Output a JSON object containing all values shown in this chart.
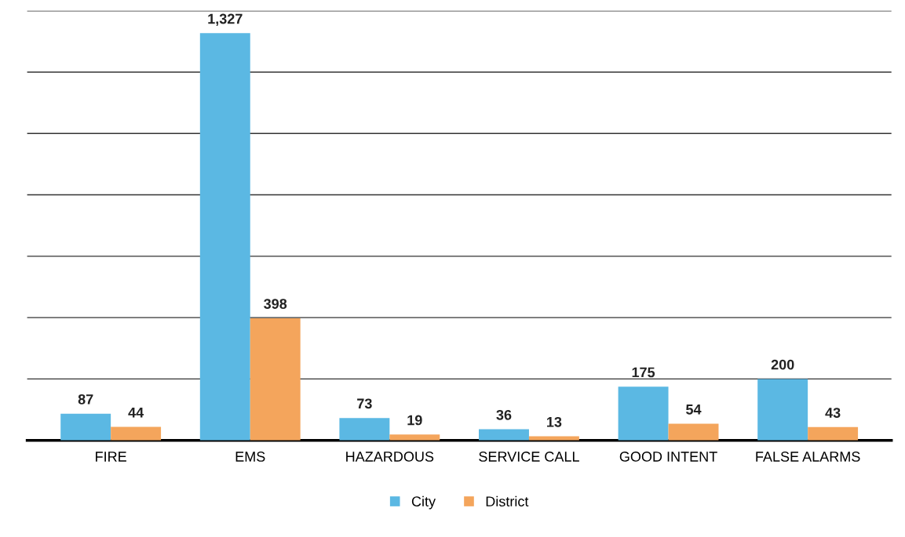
{
  "chart_data": {
    "type": "bar",
    "categories": [
      "FIRE",
      "EMS",
      "HAZARDOUS",
      "SERVICE CALL",
      "GOOD INTENT",
      "FALSE ALARMS"
    ],
    "series": [
      {
        "name": "City",
        "color": "#5bb8e3",
        "values": [
          87,
          1327,
          73,
          36,
          175,
          200
        ],
        "value_labels": [
          "87",
          "1,327",
          "73",
          "36",
          "175",
          "200"
        ]
      },
      {
        "name": "District",
        "color": "#f4a55c",
        "values": [
          44,
          398,
          19,
          13,
          54,
          43
        ],
        "value_labels": [
          "44",
          "398",
          "19",
          "13",
          "54",
          "43"
        ]
      }
    ],
    "ylim": [
      0,
      1400
    ],
    "yticks": [
      {
        "value": 0,
        "label": null
      },
      {
        "value": 200,
        "label": null
      },
      {
        "value": 400,
        "label": null
      },
      {
        "value": 600,
        "label": null
      },
      {
        "value": 800,
        "label": null
      },
      {
        "value": 1000,
        "label": null
      },
      {
        "value": 1200,
        "label": null
      },
      {
        "value": 1400,
        "label": null
      }
    ],
    "tick_labels": "x",
    "grid": "y",
    "legend": "bottom"
  }
}
